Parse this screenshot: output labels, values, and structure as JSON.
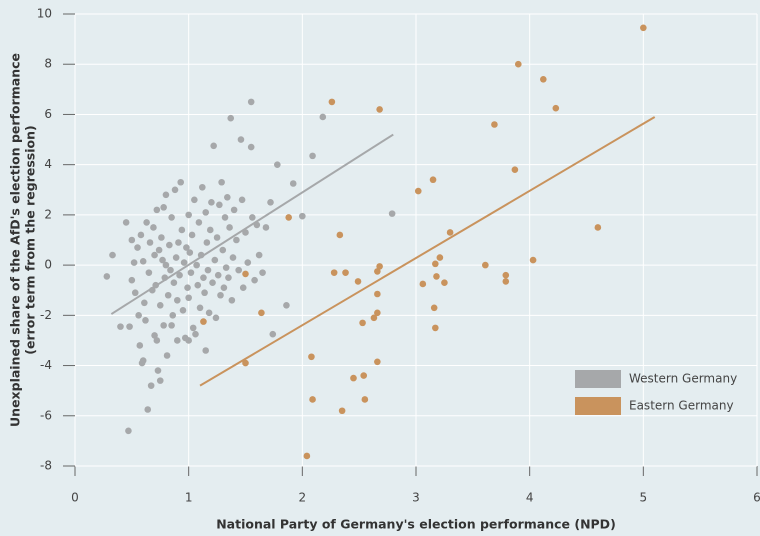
{
  "chart_data": {
    "type": "scatter",
    "xlabel": "National Party of Germany's election performance (NPD)",
    "ylabel": [
      "Unexplained share of the AfD's election performance",
      "(error term from the regression)"
    ],
    "xlim": [
      0,
      6
    ],
    "ylim": [
      -8,
      10
    ],
    "xticks": [
      0,
      1,
      2,
      3,
      4,
      5,
      6
    ],
    "yticks": [
      -8,
      -6,
      -4,
      -2,
      0,
      2,
      4,
      6,
      8,
      10
    ],
    "grid": true,
    "legend": "lower right",
    "series": [
      {
        "name": "Western Germany",
        "color": "#a6a8aa",
        "x": [
          0.28,
          0.33,
          0.4,
          0.45,
          0.47,
          0.48,
          0.5,
          0.5,
          0.52,
          0.53,
          0.55,
          0.56,
          0.57,
          0.58,
          0.59,
          0.6,
          0.61,
          0.62,
          0.63,
          0.64,
          0.65,
          0.66,
          0.67,
          0.68,
          0.69,
          0.7,
          0.7,
          0.71,
          0.72,
          0.73,
          0.74,
          0.75,
          0.75,
          0.76,
          0.77,
          0.78,
          0.78,
          0.79,
          0.8,
          0.8,
          0.81,
          0.82,
          0.83,
          0.84,
          0.85,
          0.86,
          0.87,
          0.88,
          0.89,
          0.9,
          0.9,
          0.91,
          0.92,
          0.93,
          0.94,
          0.95,
          0.96,
          0.97,
          0.98,
          0.99,
          1.0,
          1.0,
          1.01,
          1.02,
          1.03,
          1.04,
          1.05,
          1.06,
          1.07,
          1.08,
          1.09,
          1.1,
          1.11,
          1.12,
          1.13,
          1.14,
          1.15,
          1.16,
          1.17,
          1.18,
          1.19,
          1.2,
          1.21,
          1.22,
          1.23,
          1.24,
          1.25,
          1.26,
          1.27,
          1.28,
          1.29,
          1.3,
          1.31,
          1.32,
          1.33,
          1.34,
          1.35,
          1.36,
          1.37,
          1.38,
          1.39,
          1.4,
          1.42,
          1.44,
          1.46,
          1.47,
          1.48,
          1.5,
          1.52,
          1.55,
          1.55,
          1.56,
          1.58,
          1.6,
          1.62,
          1.65,
          1.68,
          1.72,
          1.74,
          1.78,
          1.86,
          1.92,
          2.0,
          2.09,
          2.18,
          2.79,
          0.85,
          0.72,
          1.0,
          1.15,
          0.6
        ],
        "values": [
          -0.45,
          0.4,
          -2.45,
          1.7,
          -6.6,
          -2.45,
          -0.6,
          1.0,
          0.1,
          -1.1,
          0.7,
          -2.0,
          -3.2,
          1.2,
          -3.9,
          0.15,
          -1.5,
          -2.2,
          1.7,
          -5.75,
          -0.3,
          0.9,
          -4.8,
          -1.0,
          1.5,
          0.4,
          -2.8,
          -0.8,
          2.2,
          -4.2,
          0.6,
          -4.6,
          -1.6,
          1.1,
          0.2,
          -2.4,
          2.3,
          -0.5,
          0.0,
          2.8,
          -3.6,
          -1.2,
          0.8,
          -0.2,
          1.9,
          -2.0,
          -0.7,
          3.0,
          0.3,
          -1.4,
          -3.0,
          0.9,
          -0.4,
          3.3,
          1.4,
          -1.8,
          0.1,
          -2.9,
          0.7,
          -0.9,
          2.0,
          -1.3,
          0.5,
          -0.3,
          1.2,
          -2.5,
          2.6,
          -2.75,
          0.0,
          -0.8,
          1.7,
          -1.7,
          0.4,
          3.1,
          -0.5,
          -1.1,
          2.1,
          0.9,
          -0.2,
          -1.9,
          1.4,
          2.5,
          -0.7,
          4.75,
          0.2,
          -2.1,
          1.1,
          -0.4,
          2.4,
          -1.2,
          3.3,
          0.6,
          -0.9,
          1.9,
          -0.1,
          2.7,
          -0.5,
          1.5,
          5.85,
          -1.4,
          0.3,
          2.2,
          1.0,
          -0.2,
          5.0,
          2.6,
          -0.9,
          1.3,
          0.1,
          6.5,
          4.7,
          1.9,
          -0.6,
          1.6,
          0.4,
          -0.3,
          1.5,
          2.5,
          -2.75,
          4.0,
          -1.6,
          3.25,
          1.95,
          4.35,
          5.9,
          2.05,
          -2.4,
          -3.0,
          -3.0,
          -3.4,
          -3.8
        ],
        "trend_x": [
          0.32,
          2.8
        ],
        "trend_y": [
          -1.95,
          5.2
        ]
      },
      {
        "name": "Eastern Germany",
        "color": "#c9935d",
        "x": [
          5.0,
          3.9,
          4.12,
          4.23,
          2.26,
          2.68,
          3.69,
          3.87,
          3.15,
          3.02,
          1.88,
          2.33,
          3.3,
          4.6,
          2.68,
          2.66,
          3.21,
          3.17,
          3.61,
          4.03,
          2.28,
          2.38,
          2.49,
          3.06,
          3.18,
          3.25,
          3.79,
          3.79,
          1.5,
          2.66,
          1.64,
          1.13,
          2.66,
          2.63,
          2.53,
          3.16,
          3.17,
          1.5,
          2.08,
          2.66,
          2.54,
          2.45,
          2.09,
          2.55,
          2.35,
          2.04
        ],
        "values": [
          9.45,
          8.0,
          7.4,
          6.25,
          6.5,
          6.2,
          5.6,
          3.8,
          3.4,
          2.95,
          1.9,
          1.2,
          1.3,
          1.5,
          -0.05,
          -0.25,
          0.3,
          0.05,
          0.0,
          0.2,
          -0.3,
          -0.3,
          -0.65,
          -0.75,
          -0.45,
          -0.7,
          -0.4,
          -0.65,
          -0.35,
          -1.15,
          -1.9,
          -2.25,
          -1.9,
          -2.1,
          -2.3,
          -1.7,
          -2.5,
          -3.9,
          -3.65,
          -3.85,
          -4.4,
          -4.5,
          -5.35,
          -5.35,
          -5.8,
          -7.6
        ],
        "trend_x": [
          1.1,
          5.1
        ],
        "trend_y": [
          -4.8,
          5.9
        ]
      }
    ]
  }
}
